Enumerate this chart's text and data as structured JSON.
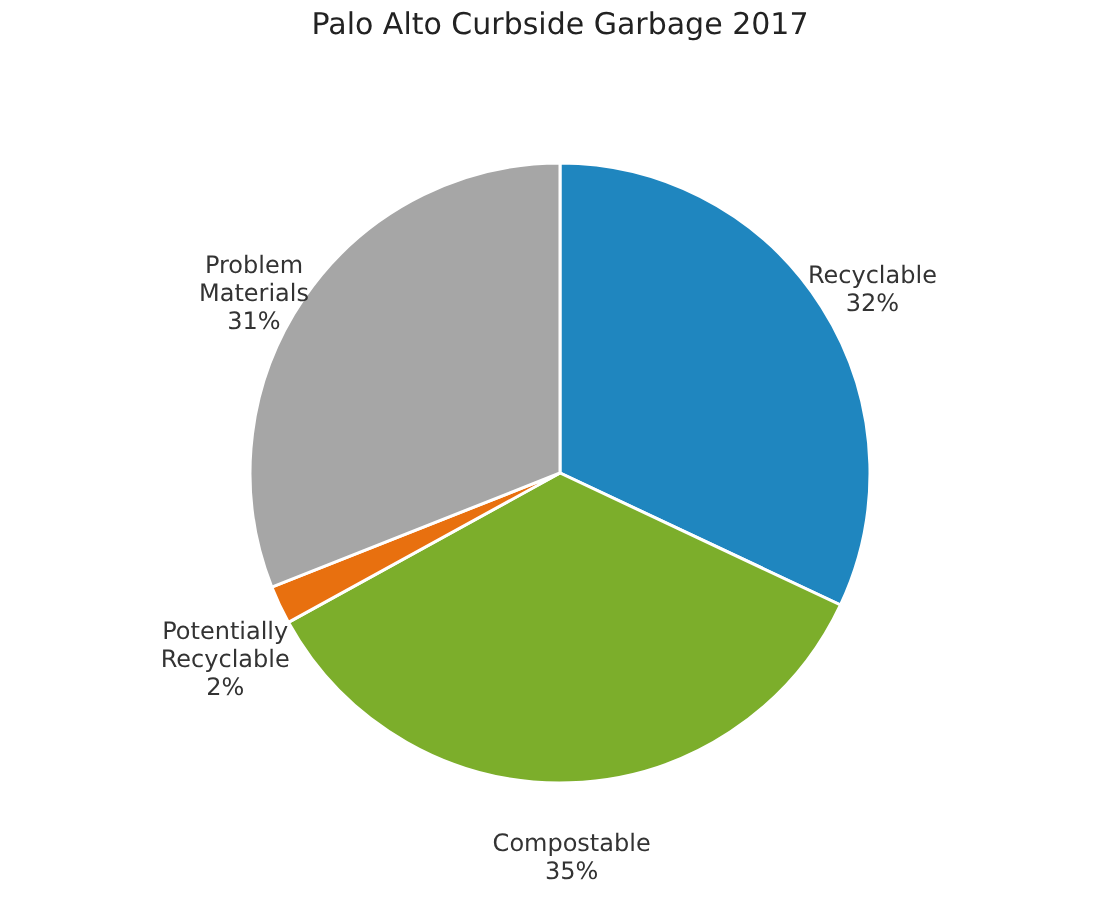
{
  "chart_data": {
    "type": "pie",
    "title": "Palo Alto Curbside Garbage 2017",
    "categories": [
      "Recyclable",
      "Compostable",
      "Potentially Recyclable",
      "Problem Materials"
    ],
    "values": [
      32,
      35,
      2,
      31
    ],
    "value_labels": [
      "32%",
      "35%",
      "2%",
      "31%"
    ],
    "colors": [
      "#1f86bf",
      "#7cae2b",
      "#e8700f",
      "#a6a6a6"
    ],
    "legend": false
  }
}
